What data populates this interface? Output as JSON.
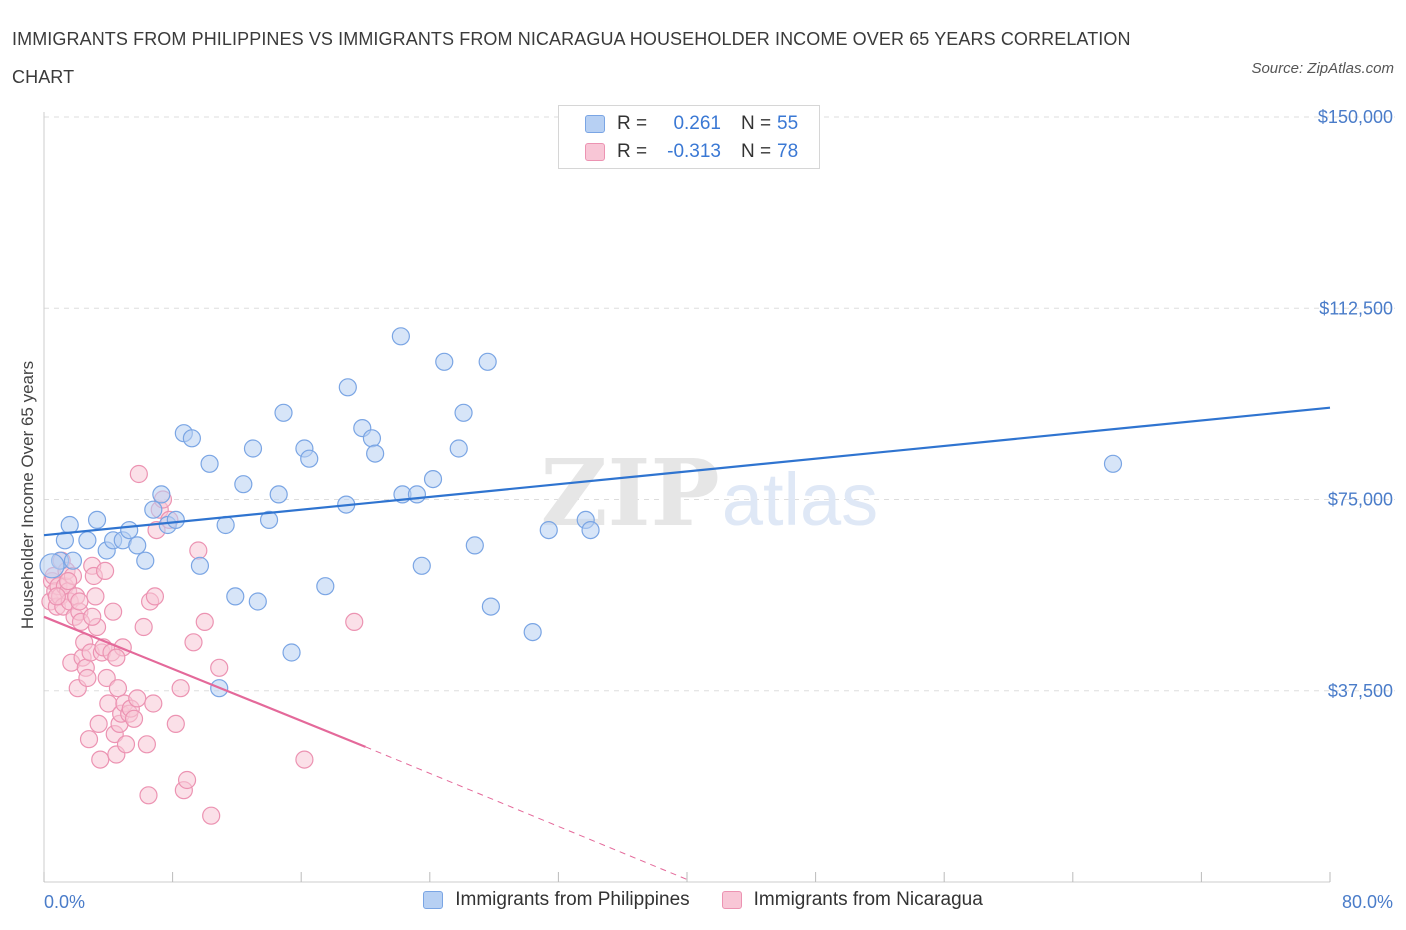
{
  "title": "IMMIGRANTS FROM PHILIPPINES VS IMMIGRANTS FROM NICARAGUA HOUSEHOLDER INCOME OVER 65 YEARS CORRELATION CHART",
  "source": "Source: ZipAtlas.com",
  "watermark": "ZIPatlas",
  "legend": {
    "rows": [
      {
        "r_label": "R =",
        "r_value": "0.261",
        "n_label": "N =",
        "n_value": "55"
      },
      {
        "r_label": "R =",
        "r_value": "-0.313",
        "n_label": "N =",
        "n_value": "78"
      }
    ]
  },
  "colors": {
    "blue_fill": "#b7d0f3",
    "blue_stroke": "#7aa5e4",
    "blue_line": "#2f74d0",
    "pink_fill": "#f8c6d6",
    "pink_stroke": "#ec93b2",
    "pink_line": "#e4699a",
    "grid": "#dddddd",
    "axis_text": "#4a7cc9"
  },
  "chart_data": {
    "type": "scatter",
    "xlabel": "",
    "ylabel": "Householder Income Over 65 years",
    "xlim": [
      0,
      80
    ],
    "ylim": [
      0,
      150000
    ],
    "x_tick_labels": [
      "0.0%",
      "80.0%"
    ],
    "y_ticks": [
      37500,
      75000,
      112500,
      150000
    ],
    "y_tick_labels": [
      "$37,500",
      "$75,000",
      "$112,500",
      "$150,000"
    ],
    "grid": "horizontal dashed",
    "legend_position": "top-center",
    "series": [
      {
        "name": "Immigrants from Philippines",
        "color": "blue",
        "points": [
          [
            1.0,
            63000
          ],
          [
            1.3,
            67000
          ],
          [
            1.6,
            70000
          ],
          [
            1.8,
            63000
          ],
          [
            2.7,
            67000
          ],
          [
            3.3,
            71000
          ],
          [
            3.9,
            65000
          ],
          [
            4.3,
            67000
          ],
          [
            4.9,
            67000
          ],
          [
            5.3,
            69000
          ],
          [
            5.8,
            66000
          ],
          [
            6.3,
            63000
          ],
          [
            6.8,
            73000
          ],
          [
            7.3,
            76000
          ],
          [
            7.7,
            70000
          ],
          [
            8.2,
            71000
          ],
          [
            8.7,
            88000
          ],
          [
            9.2,
            87000
          ],
          [
            9.7,
            62000
          ],
          [
            10.3,
            82000
          ],
          [
            10.9,
            38000
          ],
          [
            11.3,
            70000
          ],
          [
            11.9,
            56000
          ],
          [
            12.4,
            78000
          ],
          [
            13.0,
            85000
          ],
          [
            13.3,
            55000
          ],
          [
            14.0,
            71000
          ],
          [
            14.6,
            76000
          ],
          [
            14.9,
            92000
          ],
          [
            15.4,
            45000
          ],
          [
            16.2,
            85000
          ],
          [
            16.5,
            83000
          ],
          [
            17.5,
            58000
          ],
          [
            18.8,
            74000
          ],
          [
            18.9,
            97000
          ],
          [
            19.8,
            89000
          ],
          [
            20.4,
            87000
          ],
          [
            20.6,
            84000
          ],
          [
            22.2,
            107000
          ],
          [
            22.3,
            76000
          ],
          [
            23.2,
            76000
          ],
          [
            23.5,
            62000
          ],
          [
            24.2,
            79000
          ],
          [
            24.9,
            102000
          ],
          [
            25.8,
            85000
          ],
          [
            26.1,
            92000
          ],
          [
            26.8,
            66000
          ],
          [
            27.6,
            102000
          ],
          [
            27.8,
            54000
          ],
          [
            30.4,
            49000
          ],
          [
            31.4,
            69000
          ],
          [
            33.7,
            71000
          ],
          [
            34.0,
            69000
          ],
          [
            66.5,
            82000
          ],
          [
            0.5,
            62000
          ]
        ],
        "trend": {
          "x": [
            0,
            80
          ],
          "y": [
            68000,
            93000
          ]
        }
      },
      {
        "name": "Immigrants from Nicaragua",
        "color": "pink",
        "points": [
          [
            0.4,
            55000
          ],
          [
            0.5,
            59000
          ],
          [
            0.6,
            60000
          ],
          [
            0.7,
            57000
          ],
          [
            0.8,
            54000
          ],
          [
            0.9,
            58000
          ],
          [
            1.0,
            56000
          ],
          [
            1.1,
            63000
          ],
          [
            1.2,
            54000
          ],
          [
            1.3,
            58000
          ],
          [
            1.4,
            61000
          ],
          [
            1.5,
            57000
          ],
          [
            1.6,
            55000
          ],
          [
            1.7,
            43000
          ],
          [
            1.8,
            60000
          ],
          [
            1.9,
            52000
          ],
          [
            2.0,
            56000
          ],
          [
            2.1,
            38000
          ],
          [
            2.2,
            53000
          ],
          [
            2.3,
            51000
          ],
          [
            2.4,
            44000
          ],
          [
            2.5,
            47000
          ],
          [
            2.6,
            42000
          ],
          [
            2.7,
            40000
          ],
          [
            2.8,
            28000
          ],
          [
            2.9,
            45000
          ],
          [
            3.0,
            62000
          ],
          [
            3.1,
            60000
          ],
          [
            3.2,
            56000
          ],
          [
            3.3,
            50000
          ],
          [
            3.4,
            31000
          ],
          [
            3.5,
            24000
          ],
          [
            3.6,
            45000
          ],
          [
            3.7,
            46000
          ],
          [
            3.8,
            61000
          ],
          [
            3.9,
            40000
          ],
          [
            4.0,
            35000
          ],
          [
            4.2,
            45000
          ],
          [
            4.3,
            53000
          ],
          [
            4.4,
            29000
          ],
          [
            4.5,
            25000
          ],
          [
            4.6,
            38000
          ],
          [
            4.7,
            31000
          ],
          [
            4.8,
            33000
          ],
          [
            4.9,
            46000
          ],
          [
            5.0,
            35000
          ],
          [
            5.1,
            27000
          ],
          [
            5.3,
            33000
          ],
          [
            5.4,
            34000
          ],
          [
            5.6,
            32000
          ],
          [
            5.8,
            36000
          ],
          [
            5.9,
            80000
          ],
          [
            6.2,
            50000
          ],
          [
            6.4,
            27000
          ],
          [
            6.5,
            17000
          ],
          [
            6.6,
            55000
          ],
          [
            6.8,
            35000
          ],
          [
            6.9,
            56000
          ],
          [
            7.0,
            69000
          ],
          [
            7.2,
            73000
          ],
          [
            7.4,
            75000
          ],
          [
            7.8,
            71000
          ],
          [
            8.2,
            31000
          ],
          [
            8.5,
            38000
          ],
          [
            8.7,
            18000
          ],
          [
            8.9,
            20000
          ],
          [
            9.3,
            47000
          ],
          [
            9.6,
            65000
          ],
          [
            10.0,
            51000
          ],
          [
            10.4,
            13000
          ],
          [
            10.9,
            42000
          ],
          [
            16.2,
            24000
          ],
          [
            19.3,
            51000
          ],
          [
            0.8,
            56000
          ],
          [
            1.5,
            59000
          ],
          [
            2.2,
            55000
          ],
          [
            3.0,
            52000
          ],
          [
            4.5,
            44000
          ]
        ],
        "trend": {
          "x": [
            0,
            20
          ],
          "y": [
            52000,
            26500
          ]
        },
        "trend_extension": {
          "x": [
            20,
            40
          ],
          "y": [
            26500,
            500
          ]
        }
      }
    ]
  }
}
